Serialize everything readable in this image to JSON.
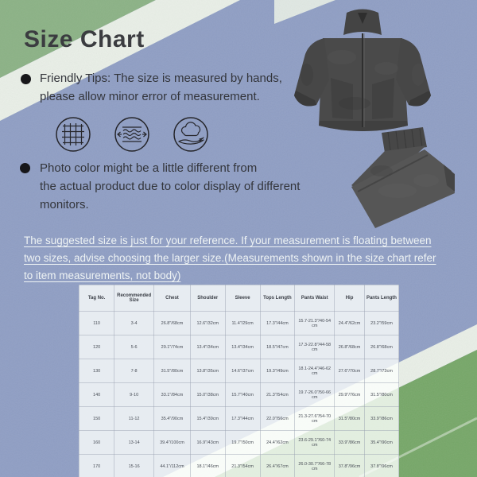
{
  "page": {
    "title": "Size Chart"
  },
  "colors": {
    "green_top": "#8bb285",
    "green_bottom": "#76a768",
    "blue": "#8f9ec4",
    "stripe_white": "#e9efe7",
    "title_text": "#3b3c40",
    "body_text": "#33353b",
    "notice_text": "#eef3f4",
    "garment_gray": "#4a4a4a"
  },
  "tips": [
    {
      "bullet": "●",
      "lines": [
        "Friendly Tips: The size is measured by hands,",
        "please allow minor error of measurement."
      ]
    },
    {
      "bullet": "●",
      "lines": [
        "Photo color might be a little different from",
        "the actual product due to color display of different",
        "monitors."
      ]
    }
  ],
  "feature_icons": [
    {
      "name": "fabric-weave-icon"
    },
    {
      "name": "stretch-elastic-icon"
    },
    {
      "name": "soft-cotton-hand-icon"
    }
  ],
  "notice": {
    "lines": [
      "The suggested size is just for your reference. If your measurement is floating between",
      "two sizes, advise choosing the larger size.(Measurements shown in the size chart refer",
      "to item measurements, not body)"
    ]
  },
  "size_table": {
    "headers": [
      "Tag No.",
      "Recommended Size",
      "Chest",
      "Shoulder",
      "Sleeve",
      "Tops Length",
      "Pants Waist",
      "Hip",
      "Pants Length"
    ],
    "rows": [
      [
        "110",
        "3-4",
        "26.8\"/68cm",
        "12.6\"/32cm",
        "11.4\"/29cm",
        "17.3\"/44cm",
        "15.7-21.3\"/40-54 cm",
        "24.4\"/62cm",
        "23.2\"/59cm"
      ],
      [
        "120",
        "5-6",
        "29.1\"/74cm",
        "13.4\"/34cm",
        "13.4\"/34cm",
        "18.5\"/47cm",
        "17.3-22.8\"/44-58 cm",
        "26.8\"/68cm",
        "26.8\"/68cm"
      ],
      [
        "130",
        "7-8",
        "31.5\"/80cm",
        "13.8\"/35cm",
        "14.6\"/37cm",
        "19.3\"/49cm",
        "18.1-24.4\"/46-62 cm",
        "27.6\"/70cm",
        "28.7\"/73cm"
      ],
      [
        "140",
        "9-10",
        "33.1\"/84cm",
        "15.0\"/38cm",
        "15.7\"/40cm",
        "21.3\"/54cm",
        "19.7-26.0\"/50-66 cm",
        "29.9\"/76cm",
        "31.5\"/80cm"
      ],
      [
        "150",
        "11-12",
        "35.4\"/90cm",
        "15.4\"/39cm",
        "17.3\"/44cm",
        "22.0\"/56cm",
        "21.3-27.6\"/54-70 cm",
        "31.5\"/80cm",
        "33.9\"/86cm"
      ],
      [
        "160",
        "13-14",
        "39.4\"/100cm",
        "16.9\"/43cm",
        "19.7\"/50cm",
        "24.4\"/62cm",
        "23.6-29.1\"/60-74 cm",
        "33.9\"/86cm",
        "35.4\"/90cm"
      ],
      [
        "170",
        "15-16",
        "44.1\"/112cm",
        "18.1\"/46cm",
        "21.3\"/54cm",
        "26.4\"/67cm",
        "26.0-30.7\"/66-78 cm",
        "37.8\"/96cm",
        "37.8\"/96cm"
      ]
    ]
  },
  "products": [
    {
      "name": "fleece-jacket-photo"
    },
    {
      "name": "fleece-pants-photo"
    }
  ]
}
